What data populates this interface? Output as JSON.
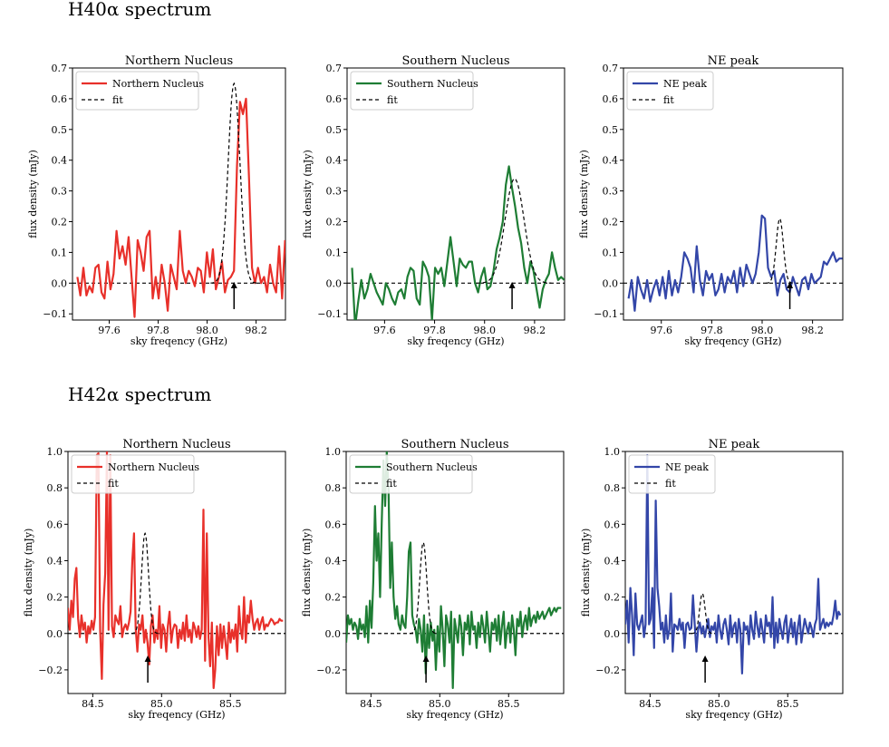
{
  "sections": [
    {
      "title": "H40α spectrum"
    },
    {
      "title": "H42α spectrum"
    }
  ],
  "colors": {
    "north": "#e8302a",
    "south": "#1e7d34",
    "ne": "#3346a8",
    "fit": "#000000"
  },
  "chart_data": [
    {
      "type": "line",
      "panel": "H40-North",
      "title": "Northern Nucleus",
      "xlabel": "sky freqency (GHz)",
      "ylabel": "flux density (mJy)",
      "xlim": [
        97.45,
        98.32
      ],
      "ylim": [
        -0.12,
        0.7
      ],
      "xticks": [
        97.6,
        97.8,
        98.0,
        98.2
      ],
      "xticklabels": [
        "97.6",
        "97.8",
        "98.0",
        "98.2"
      ],
      "yticks": [
        -0.1,
        0.0,
        0.1,
        0.2,
        0.3,
        0.4,
        0.5,
        0.6,
        0.7
      ],
      "yticklabels": [
        "−0.1",
        "0.0",
        "0.1",
        "0.2",
        "0.3",
        "0.4",
        "0.5",
        "0.6",
        "0.7"
      ],
      "legend": [
        "Northern Nucleus",
        "fit"
      ],
      "color_key": "north",
      "arrow_x": 98.11,
      "x_start": 97.47,
      "x_step": 0.0123,
      "values": [
        0.02,
        -0.04,
        0.05,
        -0.04,
        -0.01,
        -0.03,
        0.05,
        0.06,
        -0.03,
        -0.05,
        0.07,
        -0.02,
        0.03,
        0.17,
        0.08,
        0.12,
        0.06,
        0.15,
        0.02,
        -0.11,
        0.14,
        0.1,
        0.04,
        0.15,
        0.17,
        -0.05,
        0.02,
        -0.05,
        0.06,
        0.0,
        -0.09,
        0.06,
        0.02,
        -0.02,
        0.17,
        0.04,
        0.0,
        0.04,
        0.02,
        -0.01,
        0.05,
        0.04,
        -0.03,
        0.1,
        0.02,
        0.11,
        -0.02,
        0.02,
        0.07,
        -0.03,
        0.01,
        0.02,
        0.04,
        0.38,
        0.59,
        0.55,
        0.6,
        0.34,
        0.05,
        0.0,
        0.05,
        0.0,
        0.02,
        -0.03,
        0.06,
        0.0,
        -0.03,
        0.12,
        -0.05,
        0.14
      ],
      "fit": {
        "amp": 0.65,
        "center": 98.11,
        "sigma": 0.024
      }
    },
    {
      "type": "line",
      "panel": "H40-South",
      "title": "Southern Nucleus",
      "xlabel": "sky freqency (GHz)",
      "ylabel": "flux density (mJy)",
      "xlim": [
        97.45,
        98.32
      ],
      "ylim": [
        -0.12,
        0.7
      ],
      "xticks": [
        97.6,
        97.8,
        98.0,
        98.2
      ],
      "xticklabels": [
        "97.6",
        "97.8",
        "98.0",
        "98.2"
      ],
      "yticks": [
        -0.1,
        0.0,
        0.1,
        0.2,
        0.3,
        0.4,
        0.5,
        0.6,
        0.7
      ],
      "yticklabels": [
        "−0.1",
        "0.0",
        "0.1",
        "0.2",
        "0.3",
        "0.4",
        "0.5",
        "0.6",
        "0.7"
      ],
      "legend": [
        "Southern Nucleus",
        "fit"
      ],
      "color_key": "south",
      "arrow_x": 98.11,
      "x_start": 97.47,
      "x_step": 0.0123,
      "values": [
        0.05,
        -0.14,
        -0.06,
        0.01,
        -0.05,
        -0.02,
        0.03,
        0.0,
        -0.03,
        -0.05,
        -0.07,
        0.0,
        -0.02,
        -0.05,
        -0.07,
        -0.03,
        -0.02,
        -0.05,
        0.02,
        0.05,
        0.04,
        -0.05,
        -0.07,
        0.07,
        0.05,
        0.02,
        -0.12,
        0.05,
        0.03,
        0.05,
        -0.01,
        0.07,
        0.15,
        0.07,
        -0.01,
        0.08,
        0.06,
        0.05,
        0.07,
        0.07,
        0.0,
        -0.03,
        0.02,
        0.05,
        -0.02,
        -0.01,
        0.04,
        0.11,
        0.15,
        0.2,
        0.32,
        0.38,
        0.31,
        0.25,
        0.18,
        0.13,
        0.05,
        0.0,
        0.07,
        0.04,
        -0.02,
        -0.08,
        -0.02,
        0.01,
        0.03,
        0.1,
        0.05,
        0.01,
        0.02,
        0.01
      ],
      "fit": {
        "amp": 0.34,
        "center": 98.12,
        "sigma": 0.038
      }
    },
    {
      "type": "line",
      "panel": "H40-NE",
      "title": "NE peak",
      "xlabel": "sky freqency (GHz)",
      "ylabel": "flux density (mJy)",
      "xlim": [
        97.45,
        98.32
      ],
      "ylim": [
        -0.12,
        0.7
      ],
      "xticks": [
        97.6,
        97.8,
        98.0,
        98.2
      ],
      "xticklabels": [
        "97.6",
        "97.8",
        "98.0",
        "98.2"
      ],
      "yticks": [
        -0.1,
        0.0,
        0.1,
        0.2,
        0.3,
        0.4,
        0.5,
        0.6,
        0.7
      ],
      "yticklabels": [
        "−0.1",
        "0.0",
        "0.1",
        "0.2",
        "0.3",
        "0.4",
        "0.5",
        "0.6",
        "0.7"
      ],
      "legend": [
        "NE peak",
        "fit"
      ],
      "color_key": "ne",
      "arrow_x": 98.11,
      "x_start": 97.47,
      "x_step": 0.0123,
      "values": [
        -0.05,
        0.01,
        -0.09,
        0.02,
        -0.02,
        -0.05,
        0.01,
        -0.06,
        -0.02,
        0.01,
        -0.04,
        0.02,
        -0.05,
        0.04,
        -0.04,
        0.01,
        -0.03,
        0.02,
        0.1,
        0.08,
        0.05,
        -0.03,
        0.12,
        0.01,
        -0.04,
        0.04,
        0.01,
        0.03,
        -0.04,
        -0.02,
        0.03,
        -0.03,
        0.02,
        0.0,
        0.04,
        -0.03,
        0.05,
        -0.01,
        0.06,
        0.03,
        0.0,
        0.03,
        0.1,
        0.22,
        0.21,
        0.05,
        0.02,
        0.04,
        -0.04,
        0.01,
        0.03,
        -0.02,
        -0.03,
        0.02,
        -0.01,
        -0.04,
        0.01,
        0.02,
        -0.02,
        0.03,
        0.0,
        0.01,
        0.02,
        0.07,
        0.06,
        0.08,
        0.1,
        0.07,
        0.08,
        0.08
      ],
      "fit": {
        "amp": 0.21,
        "center": 98.07,
        "sigma": 0.014
      }
    },
    {
      "type": "line",
      "panel": "H42-North",
      "title": "Northern Nucleus",
      "xlabel": "sky freqency (GHz)",
      "ylabel": "flux density (mJy)",
      "xlim": [
        84.32,
        85.9
      ],
      "ylim": [
        -0.33,
        1.0
      ],
      "xticks": [
        84.5,
        85.0,
        85.5
      ],
      "xticklabels": [
        "84.5",
        "85.0",
        "85.5"
      ],
      "yticks": [
        -0.2,
        0.0,
        0.2,
        0.4,
        0.6,
        0.8,
        1.0
      ],
      "yticklabels": [
        "−0.2",
        "0.0",
        "0.2",
        "0.4",
        "0.6",
        "0.8",
        "1.0"
      ],
      "legend": [
        "Northern Nucleus",
        "fit"
      ],
      "color_key": "north",
      "arrow_x": 84.9,
      "x_start": 84.32,
      "x_step": 0.0123,
      "values": [
        0.14,
        0.02,
        0.18,
        0.09,
        0.3,
        0.36,
        0.08,
        -0.02,
        0.1,
        0.02,
        0.06,
        -0.05,
        0.04,
        0.0,
        0.07,
        0.02,
        0.09,
        0.98,
        0.99,
        0.02,
        -0.25,
        0.16,
        0.33,
        1.0,
        0.02,
        0.98,
        0.04,
        -0.02,
        0.1,
        0.07,
        0.05,
        0.15,
        -0.02,
        0.03,
        0.05,
        0.02,
        0.06,
        0.12,
        0.4,
        0.55,
        0.03,
        -0.1,
        0.05,
        0.02,
        0.1,
        -0.05,
        0.02,
        -0.05,
        -0.17,
        0.04,
        0.1,
        -0.05,
        0.02,
        -0.03,
        0.15,
        -0.08,
        0.05,
        0.02,
        -0.1,
        0.04,
        0.12,
        -0.05,
        0.02,
        0.05,
        0.04,
        -0.08,
        0.02,
        -0.03,
        0.06,
        -0.04,
        0.1,
        -0.02,
        0.02,
        -0.05,
        0.06,
        0.03,
        -0.02,
        0.04,
        -0.03,
        0.02,
        0.68,
        -0.15,
        0.55,
        -0.02,
        -0.18,
        0.06,
        -0.3,
        -0.2,
        0.04,
        -0.12,
        0.05,
        -0.08,
        0.04,
        -0.05,
        -0.14,
        0.06,
        -0.05,
        0.02,
        -0.03,
        0.05,
        -0.1,
        0.15,
        0.02,
        -0.03,
        0.2,
        -0.05,
        0.1,
        0.06,
        0.18,
        0.08,
        0.02,
        0.06,
        0.08,
        0.02,
        0.06,
        0.09,
        0.02,
        0.05,
        0.04,
        0.06,
        0.08,
        0.07,
        0.05,
        0.06,
        0.06,
        0.08,
        0.07,
        0.07
      ],
      "fit": {
        "amp": 0.55,
        "center": 84.88,
        "sigma": 0.025
      }
    },
    {
      "type": "line",
      "panel": "H42-South",
      "title": "Southern Nucleus",
      "xlabel": "sky freqency (GHz)",
      "ylabel": "flux density (mJy)",
      "xlim": [
        84.32,
        85.9
      ],
      "ylim": [
        -0.33,
        1.0
      ],
      "xticks": [
        84.5,
        85.0,
        85.5
      ],
      "xticklabels": [
        "84.5",
        "85.0",
        "85.5"
      ],
      "yticks": [
        -0.2,
        0.0,
        0.2,
        0.4,
        0.6,
        0.8,
        1.0
      ],
      "yticklabels": [
        "−0.2",
        "0.0",
        "0.2",
        "0.4",
        "0.6",
        "0.8",
        "1.0"
      ],
      "legend": [
        "Southern Nucleus",
        "fit"
      ],
      "color_key": "south",
      "arrow_x": 84.9,
      "x_start": 84.32,
      "x_step": 0.0123,
      "values": [
        -0.05,
        0.1,
        0.05,
        0.08,
        0.02,
        0.06,
        0.04,
        -0.03,
        0.08,
        0.02,
        0.05,
        -0.02,
        0.15,
        -0.05,
        0.18,
        0.03,
        0.28,
        0.7,
        0.4,
        0.55,
        0.2,
        0.6,
        0.95,
        0.7,
        1.0,
        0.8,
        0.25,
        0.5,
        0.2,
        0.08,
        0.15,
        0.05,
        0.02,
        0.1,
        0.05,
        0.03,
        0.2,
        0.45,
        0.5,
        0.1,
        0.05,
        0.02,
        -0.05,
        0.08,
        0.02,
        -0.1,
        0.1,
        -0.22,
        0.05,
        -0.08,
        0.06,
        -0.04,
        0.02,
        -0.2,
        0.04,
        -0.1,
        0.15,
        0.02,
        -0.18,
        0.1,
        0.05,
        -0.05,
        0.12,
        -0.3,
        0.08,
        0.02,
        -0.05,
        0.1,
        0.04,
        -0.12,
        0.06,
        0.02,
        0.1,
        -0.06,
        0.12,
        0.02,
        0.04,
        -0.08,
        0.06,
        -0.02,
        0.1,
        0.04,
        -0.05,
        0.12,
        0.02,
        -0.1,
        0.06,
        0.02,
        0.08,
        -0.04,
        0.1,
        -0.06,
        0.04,
        0.12,
        -0.08,
        0.02,
        0.06,
        -0.05,
        0.1,
        0.02,
        -0.12,
        0.08,
        0.04,
        0.12,
        -0.02,
        0.06,
        0.1,
        0.02,
        0.14,
        0.04,
        0.08,
        0.1,
        0.06,
        0.12,
        0.08,
        0.1,
        0.12,
        0.08,
        0.1,
        0.12,
        0.14,
        0.1,
        0.12,
        0.14,
        0.12,
        0.14,
        0.14,
        0.14
      ],
      "fit": {
        "amp": 0.5,
        "center": 84.88,
        "sigma": 0.025
      }
    },
    {
      "type": "line",
      "panel": "H42-NE",
      "title": "NE peak",
      "xlabel": "sky freqency (GHz)",
      "ylabel": "flux density (mJy)",
      "xlim": [
        84.32,
        85.9
      ],
      "ylim": [
        -0.33,
        1.0
      ],
      "xticks": [
        84.5,
        85.0,
        85.5
      ],
      "xticklabels": [
        "84.5",
        "85.0",
        "85.5"
      ],
      "yticks": [
        -0.2,
        0.0,
        0.2,
        0.4,
        0.6,
        0.8,
        1.0
      ],
      "yticklabels": [
        "−0.2",
        "0.0",
        "0.2",
        "0.4",
        "0.6",
        "0.8",
        "1.0"
      ],
      "legend": [
        "NE peak",
        "fit"
      ],
      "color_key": "ne",
      "arrow_x": 84.9,
      "x_start": 84.32,
      "x_step": 0.0123,
      "values": [
        0.05,
        0.18,
        -0.05,
        0.25,
        0.1,
        -0.12,
        0.22,
        0.05,
        0.02,
        0.06,
        0.1,
        -0.02,
        0.05,
        0.98,
        0.05,
        0.08,
        0.25,
        -0.08,
        0.73,
        0.25,
        0.15,
        0.02,
        0.06,
        -0.05,
        0.1,
        -0.03,
        0.02,
        0.22,
        -0.1,
        0.05,
        0.04,
        0.02,
        0.08,
        0.02,
        0.06,
        -0.08,
        0.05,
        0.06,
        0.02,
        0.03,
        0.21,
        0.05,
        -0.1,
        0.02,
        0.06,
        0.0,
        0.04,
        -0.02,
        0.03,
        0.08,
        -0.02,
        0.04,
        0.02,
        0.06,
        -0.05,
        0.1,
        0.02,
        -0.03,
        0.05,
        0.08,
        0.02,
        -0.06,
        0.1,
        -0.02,
        0.04,
        0.06,
        -0.05,
        0.08,
        0.02,
        -0.22,
        0.06,
        0.02,
        0.04,
        -0.06,
        0.1,
        0.02,
        -0.03,
        0.12,
        0.04,
        -0.02,
        0.08,
        0.02,
        -0.05,
        0.1,
        0.04,
        0.06,
        -0.02,
        0.2,
        -0.08,
        0.06,
        -0.05,
        0.08,
        0.02,
        -0.03,
        0.06,
        0.1,
        -0.05,
        0.02,
        0.08,
        -0.02,
        0.06,
        -0.06,
        0.04,
        0.1,
        -0.05,
        0.02,
        0.08,
        0.04,
        0.0,
        0.06,
        0.03,
        -0.02,
        0.05,
        0.08,
        0.3,
        0.02,
        0.05,
        0.08,
        0.03,
        0.06,
        0.04,
        0.06,
        0.05,
        0.1,
        0.18,
        0.08,
        0.12,
        0.1
      ],
      "fit": {
        "amp": 0.22,
        "center": 84.88,
        "sigma": 0.02
      }
    }
  ]
}
